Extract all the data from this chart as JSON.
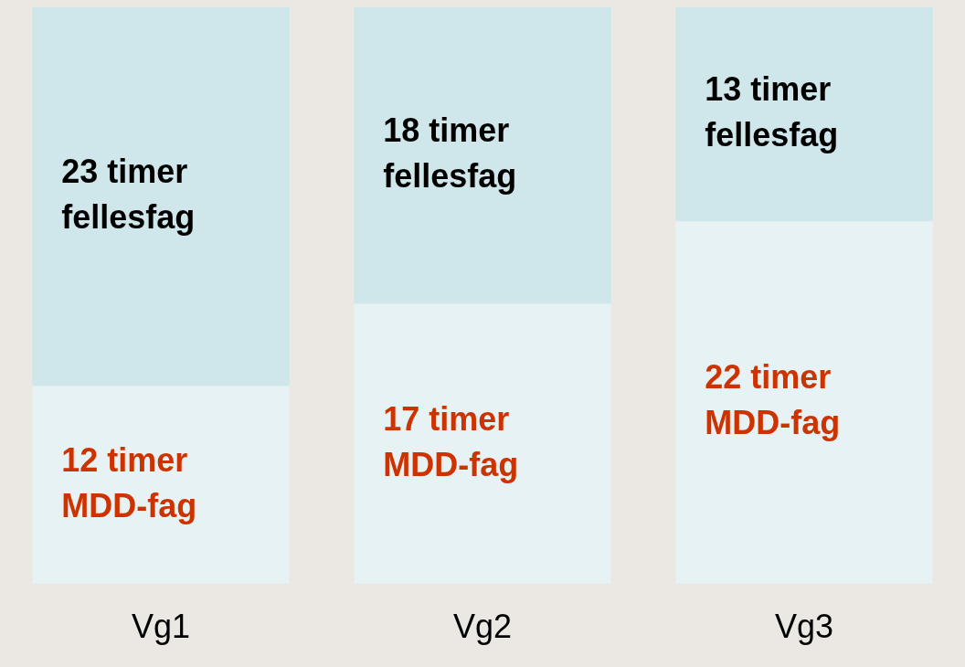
{
  "chart_data": {
    "type": "bar",
    "stacked": true,
    "categories": [
      "Vg1",
      "Vg2",
      "Vg3"
    ],
    "series": [
      {
        "color": "#e6f2f3",
        "values": [
          12,
          17,
          22
        ],
        "value_labels": [
          "12 timer\nMDD-fag",
          "17 timer\nMDD-fag",
          "22 timer\nMDD-fag"
        ]
      },
      {
        "color": "#cfe7ea",
        "values": [
          23,
          18,
          13
        ],
        "value_labels": [
          "23 timer\nfellesfag",
          "18 timer\nfellesfag",
          "13 timer\nfellesfag"
        ]
      }
    ],
    "ylim": [
      0,
      35
    ],
    "grid": false,
    "legend": false,
    "tick_labels": "x"
  }
}
